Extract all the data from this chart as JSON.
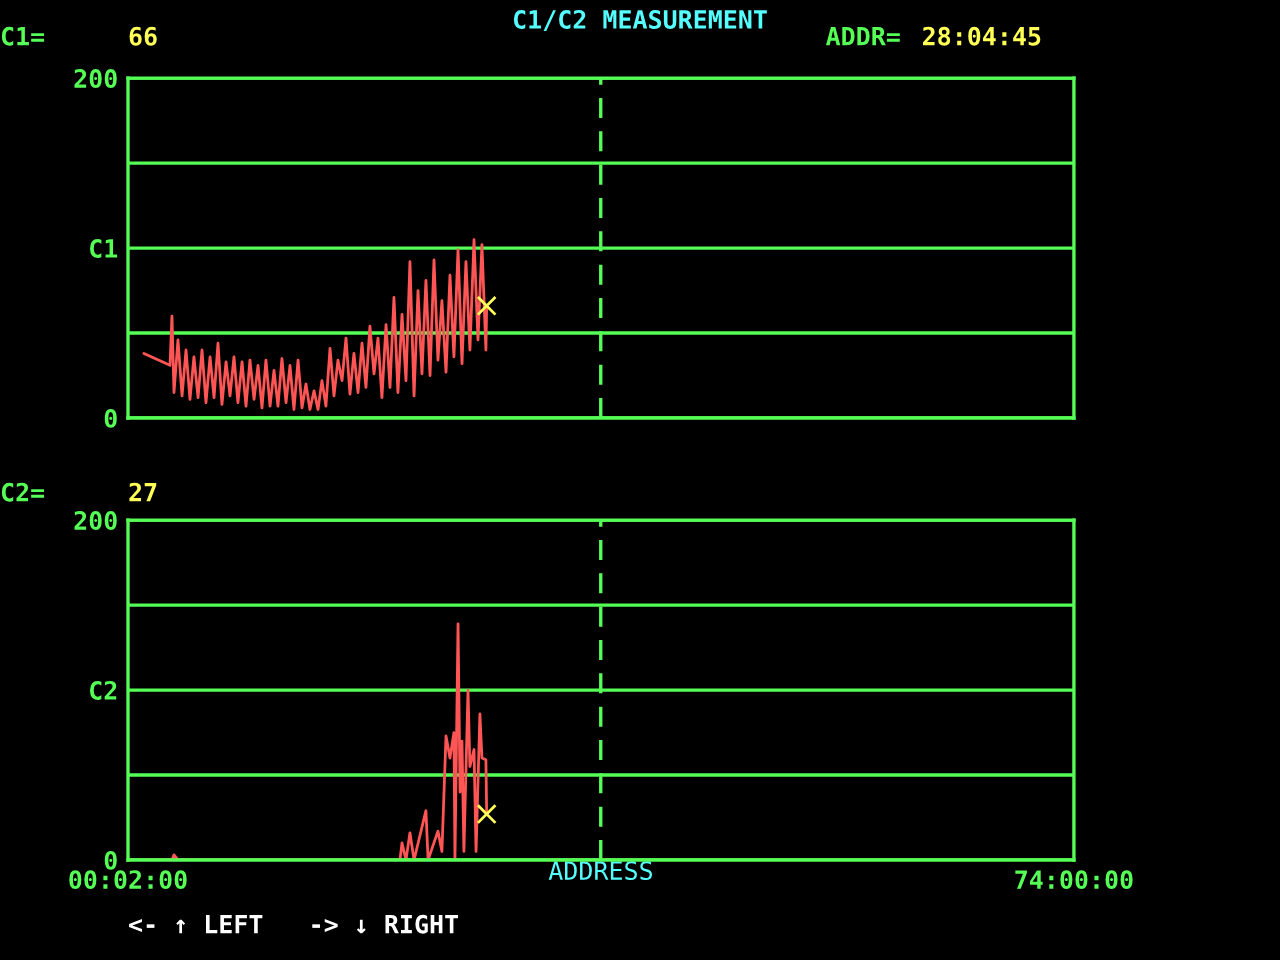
{
  "chart_data": [
    {
      "type": "line",
      "title": "C1/C2 MEASUREMENT",
      "annotations": [
        "C1=",
        "66",
        "ADDR=",
        "28:04:45"
      ],
      "x": [
        1.28,
        3.32,
        3.47,
        3.63,
        3.94,
        4.26,
        4.57,
        4.88,
        5.19,
        5.51,
        5.82,
        6.13,
        6.45,
        6.76,
        7.07,
        7.38,
        7.7,
        8.01,
        8.32,
        8.63,
        8.95,
        9.26,
        9.57,
        9.89,
        10.2,
        10.51,
        10.82,
        11.14,
        11.45,
        11.76,
        12.07,
        12.39,
        12.7,
        13.01,
        13.33,
        13.64,
        13.95,
        14.26,
        14.58,
        14.89,
        15.2,
        15.51,
        15.83,
        16.14,
        16.45,
        16.77,
        17.08,
        17.39,
        17.7,
        18.02,
        18.33,
        18.64,
        18.95,
        19.27,
        19.58,
        19.89,
        20.21,
        20.52,
        20.83,
        21.14,
        21.46,
        21.77,
        22.08,
        22.4,
        22.71,
        23.02,
        23.33,
        23.65,
        23.96,
        24.27,
        24.58,
        24.9,
        25.21,
        25.52,
        25.84,
        26.15,
        26.46,
        26.77,
        27.09,
        27.4,
        27.71,
        28.02,
        28.08
      ],
      "series": [
        {
          "color": "#ff5555",
          "values": [
            38,
            31,
            60,
            15,
            46,
            13,
            40,
            11,
            36,
            12,
            40,
            9,
            36,
            12,
            44,
            8,
            33,
            13,
            36,
            9,
            33,
            7,
            34,
            11,
            31,
            6,
            34,
            7,
            28,
            7,
            35,
            9,
            31,
            5,
            34,
            6,
            20,
            5,
            16,
            5,
            22,
            7,
            41,
            13,
            34,
            22,
            47,
            14,
            38,
            15,
            44,
            18,
            54,
            26,
            47,
            12,
            55,
            18,
            71,
            15,
            61,
            22,
            92,
            13,
            75,
            26,
            81,
            25,
            93,
            34,
            69,
            27,
            84,
            36,
            99,
            32,
            92,
            40,
            105,
            46,
            102,
            40,
            66
          ]
        }
      ],
      "xlim": [
        0.0333,
        74
      ],
      "ylim": [
        0,
        200
      ],
      "yticks": [
        0,
        {
          "value": 50,
          "label": null
        },
        {
          "value": 100,
          "label": "C1"
        },
        {
          "value": 150,
          "label": null
        },
        200
      ],
      "grid": "y",
      "tick_labels": "y",
      "ref_lines": [
        {
          "axis": "x",
          "value": 37,
          "color": "#55ff55",
          "line_style": "dashed"
        }
      ],
      "line_style": "solid"
    },
    {
      "type": "line",
      "xlabel": "ADDRESS",
      "annotations": [
        "C2=",
        "27",
        "<- ↑ LEFT   -> ↓ RIGHT"
      ],
      "x": [
        1.28,
        3.47,
        3.63,
        3.94,
        21.3,
        21.46,
        21.77,
        22.08,
        22.4,
        23.33,
        23.5,
        24.27,
        24.58,
        24.9,
        25.21,
        25.52,
        25.6,
        25.84,
        26.0,
        26.15,
        26.3,
        26.62,
        26.77,
        27.09,
        27.25,
        27.55,
        27.71,
        28.02,
        28.08
      ],
      "series": [
        {
          "color": "#ff5555",
          "values": [
            0,
            0,
            3,
            0,
            0,
            10,
            0,
            16,
            0,
            29,
            0,
            17,
            5,
            73,
            60,
            75,
            0,
            139,
            40,
            70,
            5,
            100,
            55,
            65,
            5,
            86,
            60,
            59,
            27
          ]
        }
      ],
      "xlim": [
        0.0333,
        74
      ],
      "xticks": [
        {
          "value": 0.0333,
          "label": "00:02:00"
        },
        {
          "value": 74,
          "label": "74:00:00"
        }
      ],
      "ylim": [
        0,
        200
      ],
      "yticks": [
        0,
        {
          "value": 50,
          "label": null
        },
        {
          "value": 100,
          "label": "C2"
        },
        {
          "value": 150,
          "label": null
        },
        200
      ],
      "grid": "y",
      "ref_lines": [
        {
          "axis": "x",
          "value": 37,
          "color": "#55ff55",
          "line_style": "dashed"
        }
      ],
      "line_style": "solid"
    }
  ]
}
